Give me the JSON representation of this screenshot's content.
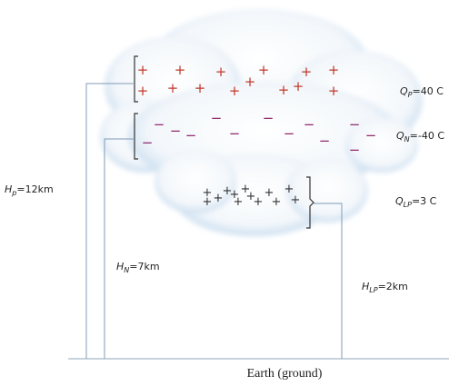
{
  "labels": {
    "q_p": {
      "symbol": "Q",
      "subscript": "P",
      "text": "=40 C"
    },
    "q_n": {
      "symbol": "Q",
      "subscript": "N",
      "text": "=-40 C"
    },
    "q_lp": {
      "symbol": "Q",
      "subscript": "LP",
      "text": "=3 C"
    },
    "h_p": {
      "symbol": "H",
      "subscript": "p",
      "text": "=12km"
    },
    "h_n": {
      "symbol": "H",
      "subscript": "N",
      "text": "=7km"
    },
    "h_lp": {
      "symbol": "H",
      "subscript": "LP",
      "text": "=2km"
    }
  },
  "ground": "Earth (ground)",
  "charge_signs": {
    "positive": "+",
    "negative": "−"
  }
}
